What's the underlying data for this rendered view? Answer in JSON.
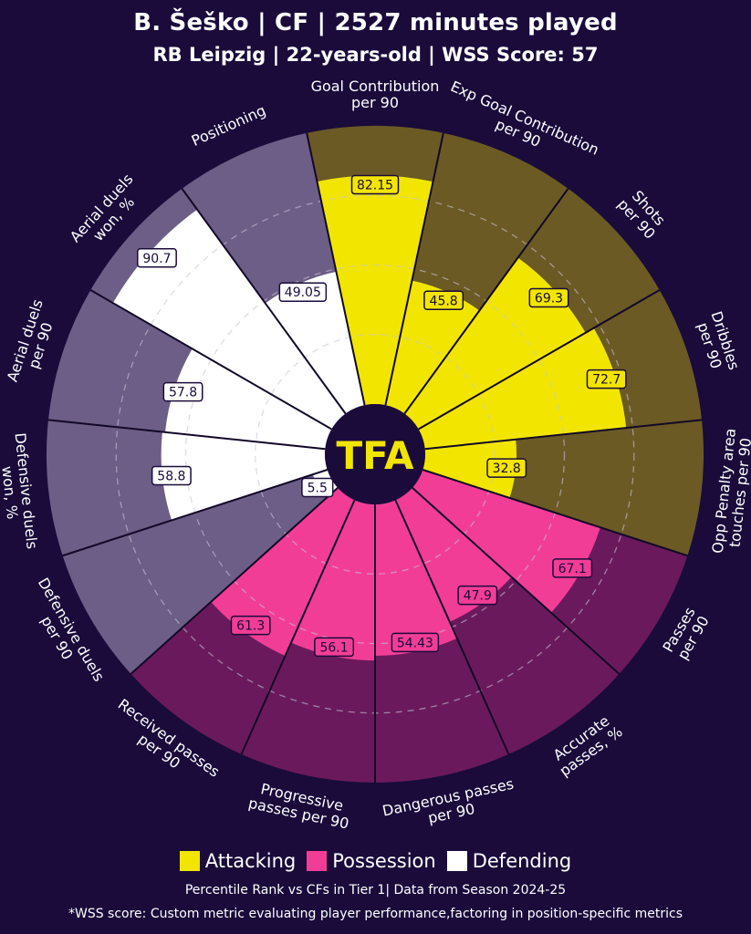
{
  "header": {
    "title": "B. Šeško | CF | 2527 minutes played",
    "subtitle": "RB Leipzig | 22-years-old | WSS Score: 57"
  },
  "logo_text": "TFA",
  "legend": {
    "items": [
      {
        "label": "Attacking",
        "color": "#f2e600"
      },
      {
        "label": "Possession",
        "color": "#f23d96"
      },
      {
        "label": "Defending",
        "color": "#ffffff"
      }
    ]
  },
  "footer": {
    "note": "Percentile Rank vs CFs in Tier 1| Data from Season 2024-25",
    "disclaimer": "*WSS score: Custom metric evaluating player performance,factoring in position-specific metrics"
  },
  "colors": {
    "background": "#1a0b3b",
    "attacking_bg": "#6b5a24",
    "possession_bg": "#6a1a5c",
    "defending_bg": "#6c5e87"
  },
  "chart_data": {
    "type": "radial-bar",
    "range": [
      0,
      100
    ],
    "categories": [
      {
        "label": "Goal Contribution\nper 90",
        "group": "Attacking",
        "value": 82.15,
        "display": "82.15"
      },
      {
        "label": "Exp Goal Contribution\nper 90",
        "group": "Attacking",
        "value": 45.8,
        "display": "45.8"
      },
      {
        "label": "Shots\nper 90",
        "group": "Attacking",
        "value": 69.3,
        "display": "69.3"
      },
      {
        "label": "Dribbles\nper 90",
        "group": "Attacking",
        "value": 72.7,
        "display": "72.7"
      },
      {
        "label": "Opp Penalty area\ntouches per 90",
        "group": "Attacking",
        "value": 32.8,
        "display": "32.8"
      },
      {
        "label": "Passes\nper 90",
        "group": "Possession",
        "value": 67.1,
        "display": "67.1"
      },
      {
        "label": "Accurate\npasses, %",
        "group": "Possession",
        "value": 47.9,
        "display": "47.9"
      },
      {
        "label": "Dangerous passes\nper 90",
        "group": "Possession",
        "value": 54.43,
        "display": "54.43"
      },
      {
        "label": "Progressive\npasses per 90",
        "group": "Possession",
        "value": 56.1,
        "display": "56.1"
      },
      {
        "label": "Received passes\nper 90",
        "group": "Possession",
        "value": 61.3,
        "display": "61.3"
      },
      {
        "label": "Defensive duels\nper 90",
        "group": "Defending",
        "value": 5.5,
        "display": "5.5"
      },
      {
        "label": "Defensive duels\nwon, %",
        "group": "Defending",
        "value": 58.8,
        "display": "58.8"
      },
      {
        "label": "Aerial duels\nper 90",
        "group": "Defending",
        "value": 57.8,
        "display": "57.8"
      },
      {
        "label": "Aerial duels\nwon, %",
        "group": "Defending",
        "value": 90.7,
        "display": "90.7"
      },
      {
        "label": "Positioning",
        "group": "Defending",
        "value": 49.05,
        "display": "49.05"
      }
    ]
  }
}
